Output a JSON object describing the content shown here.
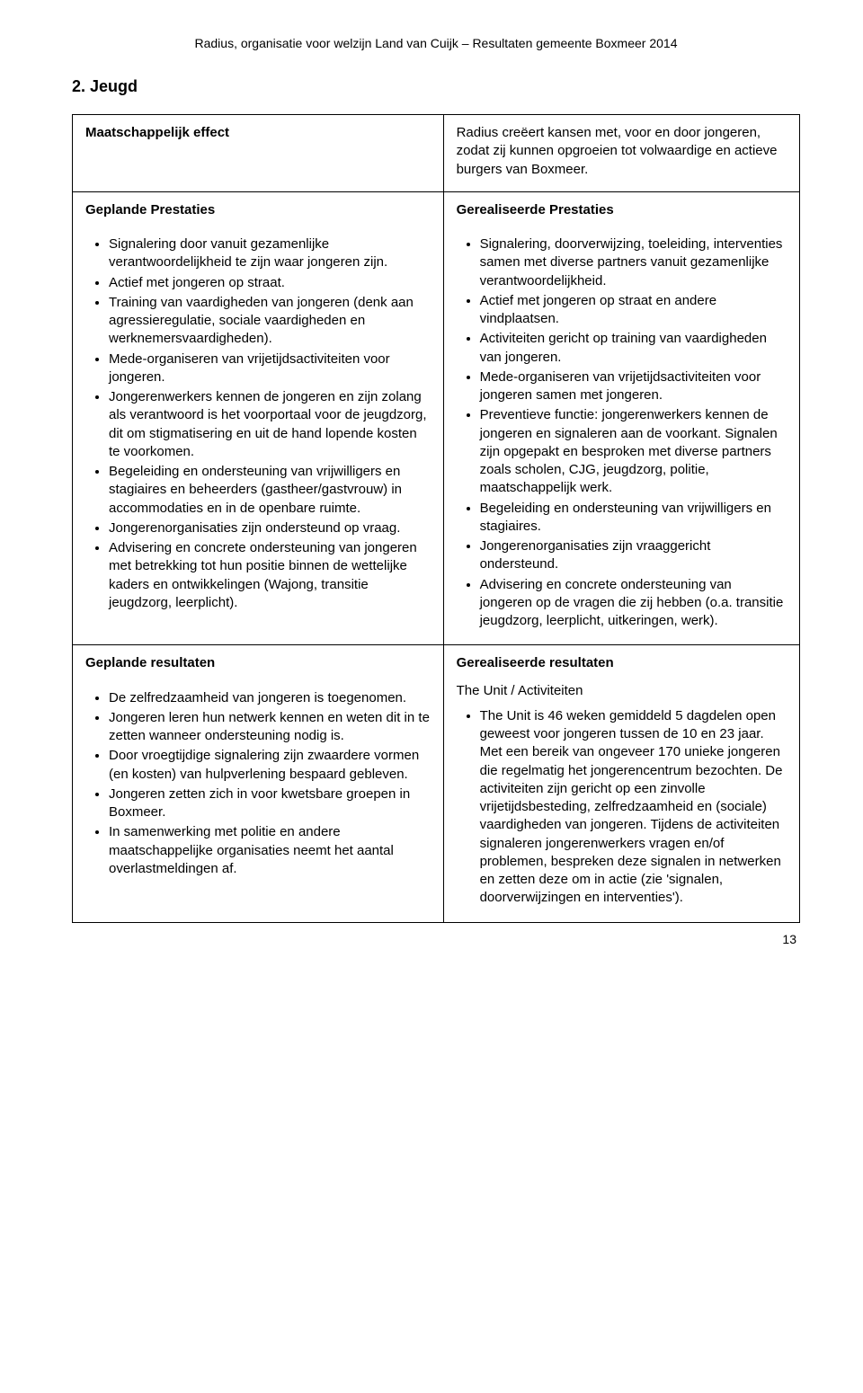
{
  "page": {
    "header": "Radius, organisatie voor welzijn Land van Cuijk – Resultaten gemeente Boxmeer 2014",
    "sectionNumber": "2.",
    "sectionTitle": "Jeugd",
    "pageNumber": "13"
  },
  "row1": {
    "leftHeader": "Maatschappelijk effect",
    "rightText": "Radius creëert kansen met, voor en door jongeren, zodat zij kunnen opgroeien tot volwaardige en actieve burgers van Boxmeer."
  },
  "row2": {
    "leftHeader": "Geplande Prestaties",
    "rightHeader": "Gerealiseerde Prestaties",
    "leftItems": [
      "Signalering door vanuit gezamenlijke verantwoordelijkheid te zijn waar jongeren zijn.",
      "Actief met jongeren op straat.",
      "Training van vaardigheden van jongeren (denk aan agressieregulatie, sociale vaardigheden en werknemersvaardigheden).",
      "Mede-organiseren van vrijetijdsactiviteiten voor jongeren.",
      "Jongerenwerkers kennen de jongeren en zijn zolang als verantwoord is het voorportaal voor de jeugdzorg, dit om stigmatisering en  uit de hand lopende kosten te voorkomen.",
      "Begeleiding en ondersteuning van vrijwilligers en stagiaires en beheerders (gastheer/gastvrouw) in accommodaties en in de openbare ruimte.",
      "Jongerenorganisaties zijn ondersteund op vraag.",
      "Advisering en concrete ondersteuning van jongeren met betrekking tot hun positie binnen de wettelijke kaders en ontwikkelingen (Wajong, transitie jeugdzorg, leerplicht)."
    ],
    "rightItems": [
      "Signalering, doorverwijzing, toeleiding, interventies samen met diverse partners vanuit gezamenlijke verantwoordelijkheid.",
      "Actief met jongeren op straat en andere vindplaatsen.",
      "Activiteiten gericht op training van vaardigheden van jongeren.",
      "Mede-organiseren van vrijetijdsactiviteiten voor jongeren samen met jongeren.",
      "Preventieve functie: jongerenwerkers kennen de jongeren en signaleren aan de voorkant. Signalen zijn opgepakt en besproken met diverse partners zoals scholen, CJG, jeugdzorg, politie, maatschappelijk werk.",
      "Begeleiding en ondersteuning van vrijwilligers en stagiaires.",
      "Jongerenorganisaties zijn vraaggericht ondersteund.",
      "Advisering en concrete ondersteuning van jongeren op de vragen die zij hebben (o.a. transitie jeugdzorg, leerplicht, uitkeringen, werk)."
    ]
  },
  "row3": {
    "leftHeader": "Geplande resultaten",
    "rightHeader": "Gerealiseerde resultaten",
    "leftItems": [
      "De zelfredzaamheid van jongeren is toegenomen.",
      "Jongeren leren hun netwerk kennen en weten dit in te zetten wanneer ondersteuning nodig is.",
      "Door vroegtijdige signalering zijn zwaardere vormen (en kosten) van hulpverlening bespaard gebleven.",
      "Jongeren zetten zich in voor kwetsbare groepen in Boxmeer.",
      "In samenwerking met politie en andere maatschappelijke organisaties neemt  het aantal overlastmeldingen af."
    ],
    "rightSubHeader": "The Unit / Activiteiten",
    "rightItems": [
      "The Unit is 46 weken gemiddeld 5 dagdelen open geweest voor jongeren tussen de 10 en 23 jaar. Met een bereik van ongeveer 170 unieke jongeren die regelmatig het jongerencentrum bezochten. De activiteiten zijn gericht op een zinvolle vrijetijdsbesteding, zelfredzaamheid en (sociale) vaardigheden van jongeren. Tijdens de activiteiten signaleren jongerenwerkers vragen en/of problemen, bespreken deze signalen in netwerken en zetten deze om in actie (zie 'signalen, doorverwijzingen en interventies')."
    ]
  }
}
